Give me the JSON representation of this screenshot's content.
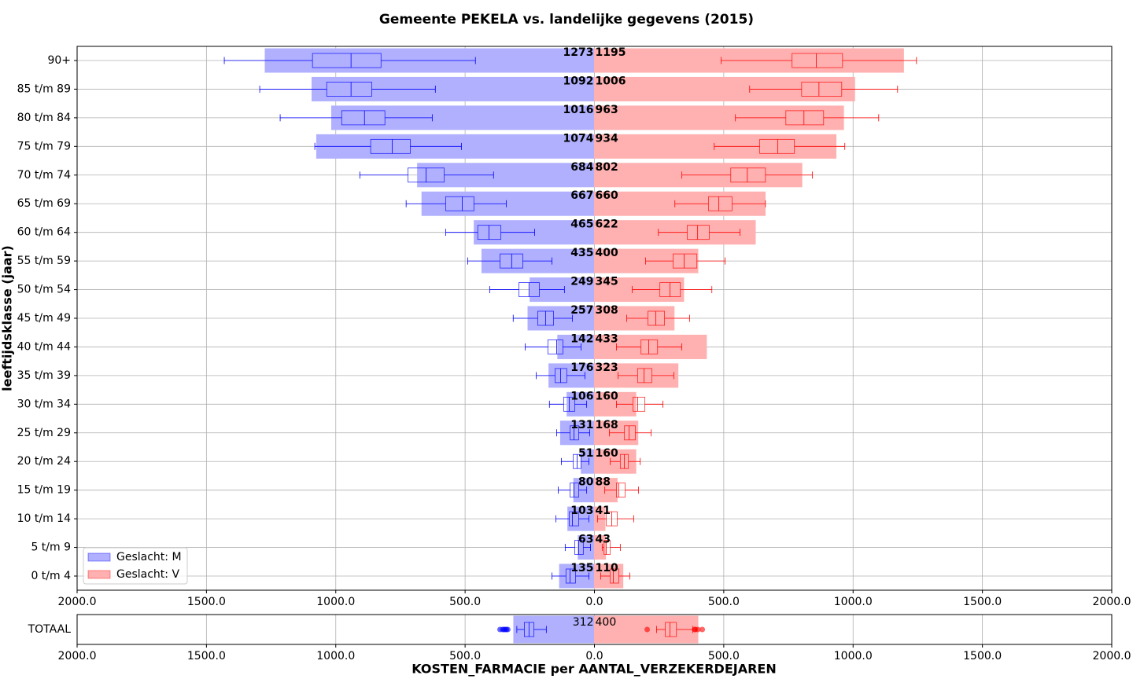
{
  "chart_data": {
    "type": "pyramid-box",
    "title": "Gemeente PEKELA vs. landelijke gegevens (2015)",
    "xlabel": "KOSTEN_FARMACIE per AANTAL_VERZEKERDEJAREN",
    "ylabel": "leeftijdsklasse (jaar)",
    "categories": [
      "90+",
      "85 t/m 89",
      "80 t/m 84",
      "75 t/m 79",
      "70 t/m 74",
      "65 t/m 69",
      "60 t/m 64",
      "55 t/m 59",
      "50 t/m 54",
      "45 t/m 49",
      "40 t/m 44",
      "35 t/m 39",
      "30 t/m 34",
      "25 t/m 29",
      "20 t/m 24",
      "15 t/m 19",
      "10 t/m 14",
      "5 t/m  9",
      "0 t/m  4"
    ],
    "total_category": "TOTAAL",
    "xlim": [
      0,
      2000
    ],
    "xticks_left": [
      {
        "value": 2000,
        "label": "2000.0"
      },
      {
        "value": 1500,
        "label": "1500.0"
      },
      {
        "value": 1000,
        "label": "1000.0"
      },
      {
        "value": 500,
        "label": "500.0"
      }
    ],
    "xticks_right": [
      {
        "value": 0,
        "label": "0.0"
      },
      {
        "value": 500,
        "label": "500.0"
      },
      {
        "value": 1000,
        "label": "1000.0"
      },
      {
        "value": 1500,
        "label": "1500.0"
      },
      {
        "value": 2000,
        "label": "2000.0"
      }
    ],
    "grid": true,
    "legend_loc": "lower left",
    "series": [
      {
        "name": "Geslacht: M",
        "side": "left",
        "color": "#0000ff",
        "values": [
          1273,
          1092,
          1016,
          1074,
          684,
          667,
          465,
          435,
          249,
          257,
          142,
          176,
          106,
          131,
          51,
          80,
          103,
          63,
          135
        ],
        "boxes": [
          [
            460,
            825,
            941,
            1090,
            1431
          ],
          [
            615,
            861,
            941,
            1035,
            1294
          ],
          [
            627,
            810,
            889,
            977,
            1215
          ],
          [
            514,
            712,
            782,
            865,
            1081
          ],
          [
            390,
            581,
            651,
            721,
            907
          ],
          [
            341,
            466,
            511,
            575,
            728
          ],
          [
            231,
            362,
            408,
            451,
            575
          ],
          [
            164,
            277,
            320,
            365,
            490
          ],
          [
            116,
            213,
            253,
            292,
            405
          ],
          [
            85,
            158,
            189,
            219,
            314
          ],
          [
            52,
            122,
            146,
            180,
            268
          ],
          [
            37,
            107,
            131,
            152,
            225
          ],
          [
            30,
            76,
            97,
            119,
            174
          ],
          [
            18,
            61,
            79,
            94,
            146
          ],
          [
            21,
            52,
            67,
            82,
            128
          ],
          [
            30,
            61,
            79,
            94,
            140
          ],
          [
            21,
            61,
            85,
            97,
            149
          ],
          [
            15,
            43,
            61,
            76,
            113
          ],
          [
            21,
            73,
            94,
            110,
            164
          ]
        ],
        "total": 312,
        "total_box": [
          186,
          234,
          253,
          271,
          300
        ],
        "total_outliers": [
          335,
          340,
          345,
          350,
          355,
          365
        ]
      },
      {
        "name": "Geslacht: V",
        "side": "right",
        "color": "#ff0000",
        "values": [
          1195,
          1006,
          963,
          934,
          802,
          660,
          622,
          400,
          345,
          308,
          433,
          323,
          160,
          168,
          160,
          88,
          41,
          43,
          110
        ],
        "boxes": [
          [
            490,
            764,
            858,
            959,
            1245
          ],
          [
            600,
            801,
            868,
            956,
            1172
          ],
          [
            545,
            740,
            810,
            886,
            1099
          ],
          [
            463,
            639,
            709,
            773,
            968
          ],
          [
            338,
            527,
            591,
            661,
            843
          ],
          [
            311,
            441,
            481,
            532,
            661
          ],
          [
            247,
            359,
            399,
            444,
            563
          ],
          [
            198,
            304,
            347,
            396,
            505
          ],
          [
            146,
            253,
            292,
            332,
            454
          ],
          [
            125,
            207,
            237,
            271,
            368
          ],
          [
            85,
            180,
            210,
            244,
            338
          ],
          [
            91,
            167,
            192,
            222,
            307
          ],
          [
            85,
            149,
            167,
            195,
            265
          ],
          [
            58,
            116,
            134,
            158,
            219
          ],
          [
            61,
            100,
            116,
            131,
            177
          ],
          [
            40,
            85,
            94,
            119,
            170
          ],
          [
            12,
            46,
            67,
            88,
            152
          ],
          [
            30,
            37,
            46,
            61,
            100
          ],
          [
            24,
            61,
            73,
            94,
            137
          ]
        ],
        "total": 400,
        "total_box": [
          240,
          274,
          292,
          317,
          380
        ],
        "total_outliers": [
          204,
          387,
          390,
          400,
          417
        ]
      }
    ]
  }
}
